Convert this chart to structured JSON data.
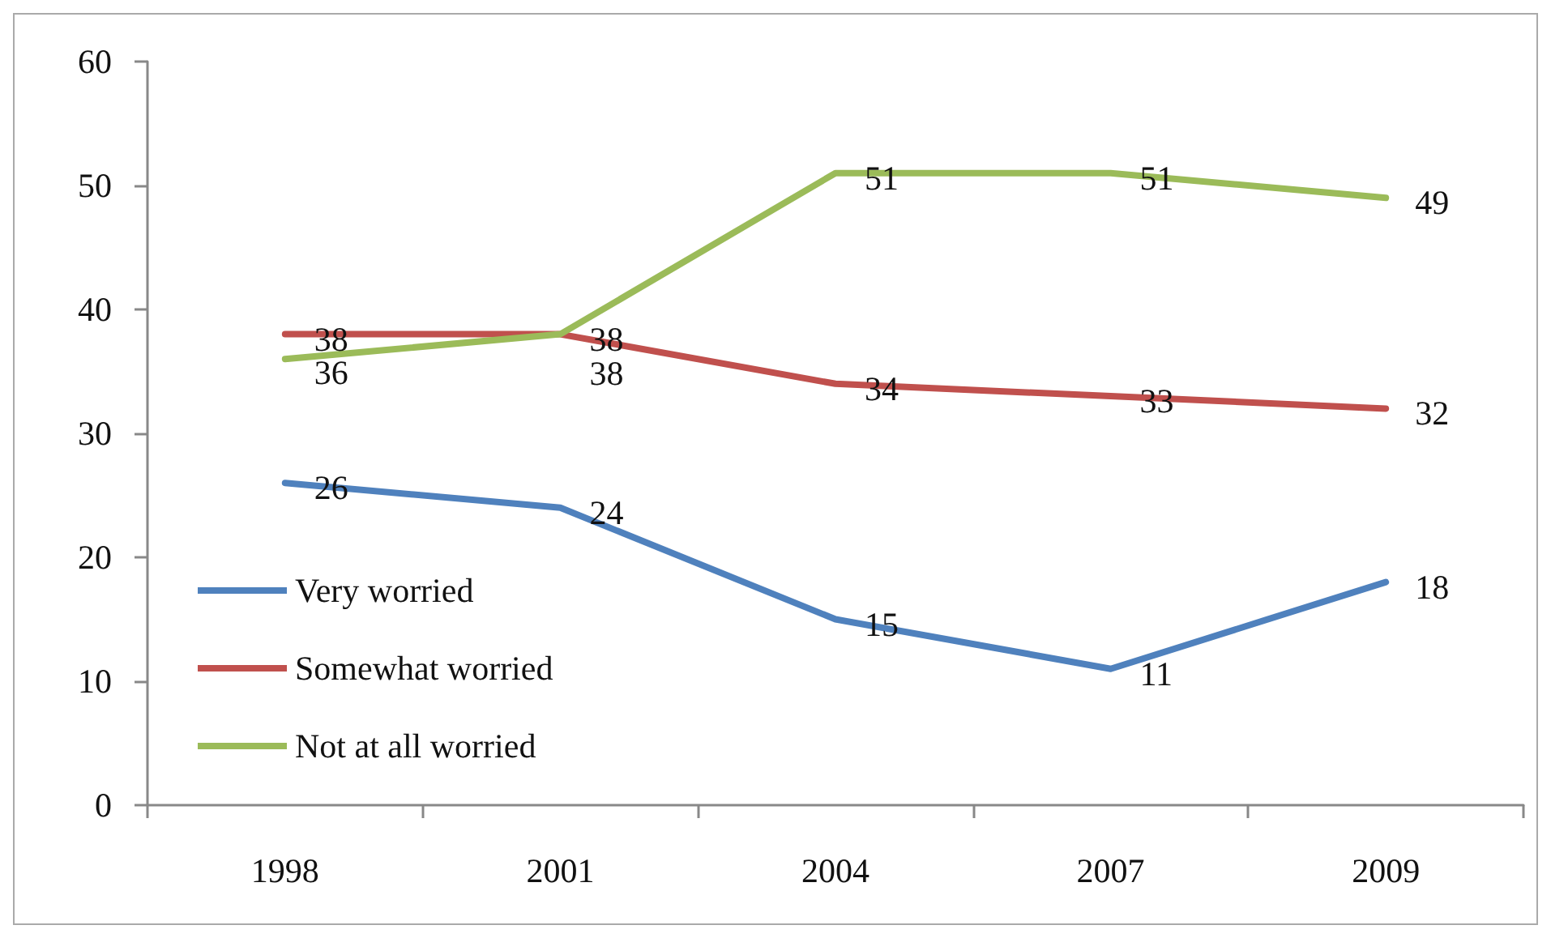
{
  "chart_data": {
    "type": "line",
    "categories": [
      "1998",
      "2001",
      "2004",
      "2007",
      "2009"
    ],
    "series": [
      {
        "name": "Very worried",
        "color": "#4f81bd",
        "values": [
          26,
          24,
          15,
          11,
          18
        ]
      },
      {
        "name": "Somewhat worried",
        "color": "#c0504d",
        "values": [
          38,
          38,
          34,
          33,
          32
        ]
      },
      {
        "name": "Not at all worried",
        "color": "#9bbb59",
        "values": [
          36,
          38,
          51,
          51,
          49
        ]
      }
    ],
    "ylim": [
      0,
      60
    ],
    "yticks": [
      0,
      10,
      20,
      30,
      40,
      50,
      60
    ],
    "grid": false,
    "legend": "bottom left",
    "marker": "none",
    "line_style": "solid",
    "data_labels": true
  }
}
